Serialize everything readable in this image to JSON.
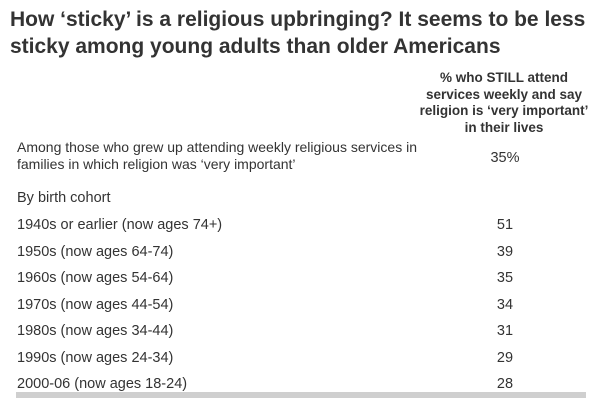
{
  "chart_data": {
    "type": "table",
    "title": "How ‘sticky’ is a religious upbringing? It seems to be less sticky among young adults than older Americans",
    "column_header": "% who STILL attend services weekly and say religion is ‘very important’ in their lives",
    "overall": {
      "label": "Among those who grew up attending weekly religious services in families in which religion was ‘very important’",
      "value": "35%"
    },
    "section_label": "By birth cohort",
    "rows": [
      {
        "label": "1940s or earlier (now ages 74+)",
        "value": 51
      },
      {
        "label": "1950s (now ages 64-74)",
        "value": 39
      },
      {
        "label": "1960s (now ages 54-64)",
        "value": 35
      },
      {
        "label": "1970s (now ages 44-54)",
        "value": 34
      },
      {
        "label": "1980s (now ages 34-44)",
        "value": 31
      },
      {
        "label": "1990s (now ages 24-34)",
        "value": 29
      },
      {
        "label": "2000-06 (now ages 18-24)",
        "value": 28
      }
    ]
  }
}
